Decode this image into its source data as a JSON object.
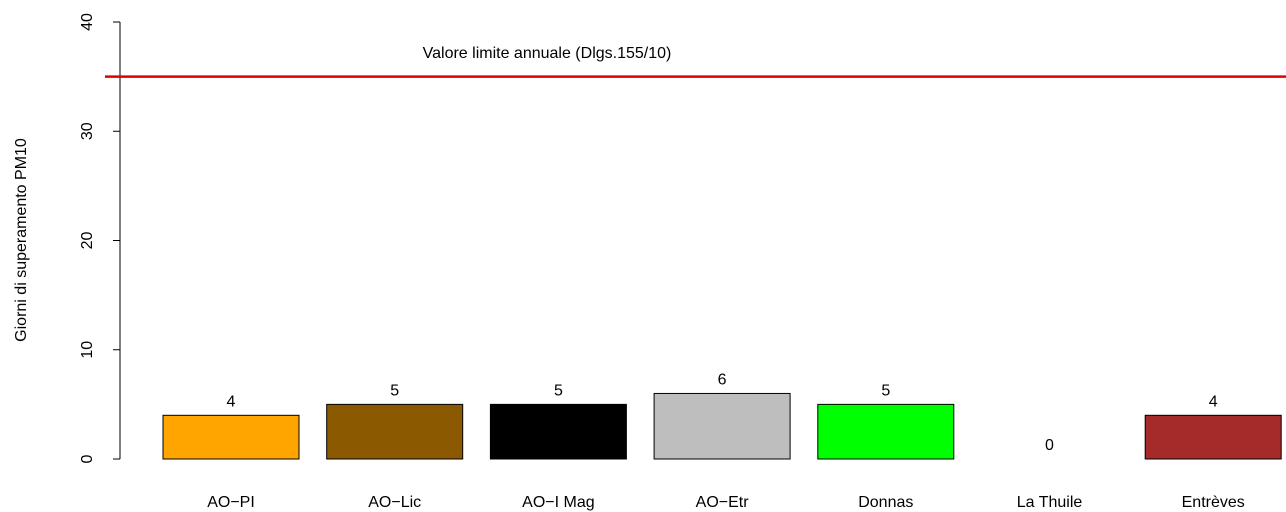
{
  "chart_data": {
    "type": "bar",
    "ylabel": "Giorni di superamento PM10",
    "categories": [
      "AO−PI",
      "AO−Lic",
      "AO−I Mag",
      "AO−Etr",
      "Donnas",
      "La Thuile",
      "Entrèves"
    ],
    "values": [
      4,
      5,
      5,
      6,
      5,
      0,
      4
    ],
    "colors": [
      "#FFA500",
      "#8B5A00",
      "#000000",
      "#BEBEBE",
      "#00FF00",
      "#FFFFFF",
      "#A52A2A"
    ],
    "ylim": [
      0,
      40
    ],
    "yticks": [
      0,
      10,
      20,
      30,
      40
    ],
    "reference_line": {
      "value": 35,
      "label": "Valore limite annuale (Dlgs.155/10)",
      "color": "#E00000"
    }
  }
}
